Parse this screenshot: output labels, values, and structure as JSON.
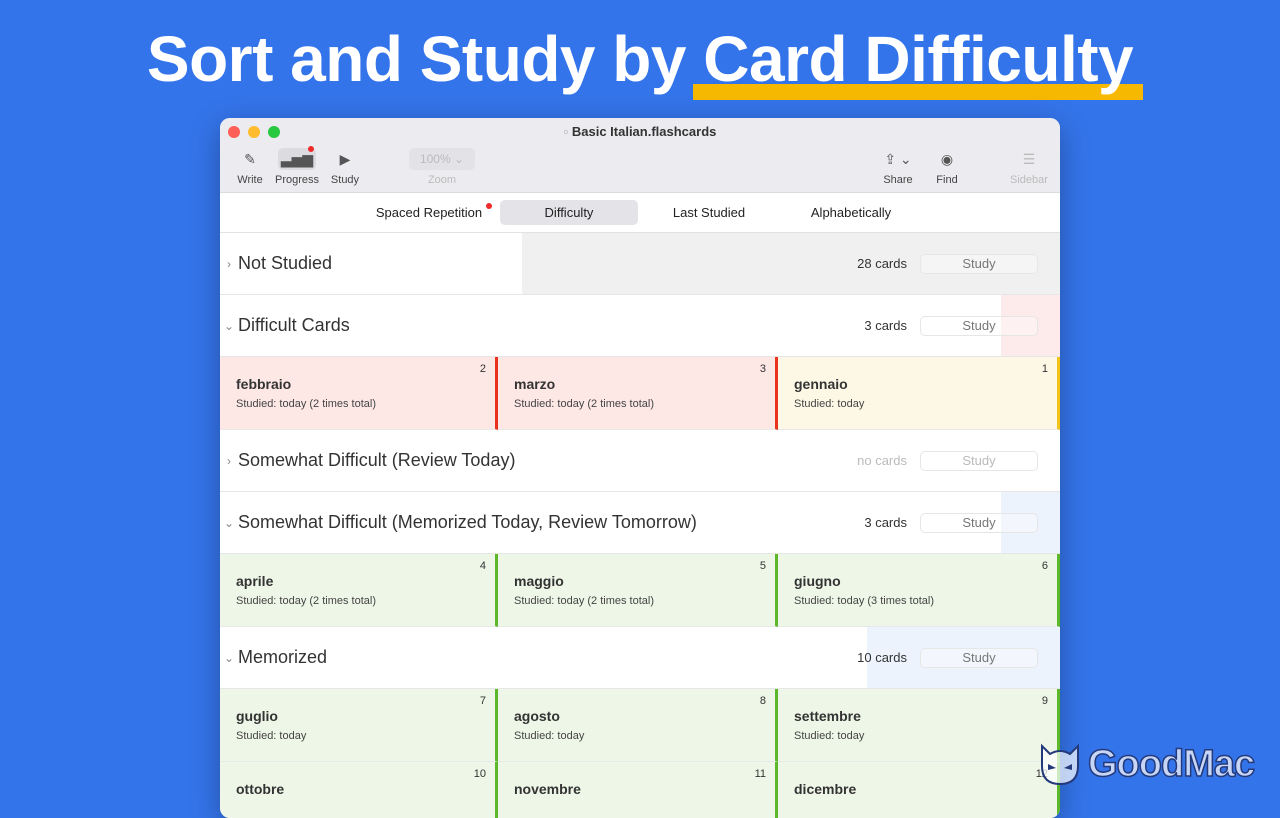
{
  "headline": {
    "part1": "Sort and Study by ",
    "part2": "Card Difficulty",
    "highlight_color": "#f6b800"
  },
  "window": {
    "title": "Basic Italian.flashcards"
  },
  "toolbar": {
    "write": "Write",
    "progress": "Progress",
    "study": "Study",
    "zoom_value": "100%",
    "zoom": "Zoom",
    "share": "Share",
    "find": "Find",
    "sidebar": "Sidebar"
  },
  "tabs": [
    {
      "label": "Spaced Repetition",
      "badge": true
    },
    {
      "label": "Difficulty",
      "selected": true
    },
    {
      "label": "Last Studied"
    },
    {
      "label": "Alphabetically"
    }
  ],
  "study_label": "Study",
  "sections": [
    {
      "name": "Not Studied",
      "count": "28 cards",
      "expanded": false,
      "progress_color": "#f0f0f0",
      "progress": 0.64,
      "cards": []
    },
    {
      "name": "Difficult Cards",
      "count": "3 cards",
      "expanded": true,
      "progress_color": "#fdeaea",
      "progress": 0.07,
      "cards": [
        {
          "n": "2",
          "word": "febbraio",
          "studied": "Studied: today (2 times total)",
          "bg": "#fde8e6",
          "border": "#e8321f"
        },
        {
          "n": "3",
          "word": "marzo",
          "studied": "Studied: today (2 times total)",
          "bg": "#fde8e6",
          "border": "#e8321f"
        },
        {
          "n": "1",
          "word": "gennaio",
          "studied": "Studied: today",
          "bg": "#fdf8e5",
          "border": "#f4c319"
        }
      ]
    },
    {
      "name": "Somewhat Difficult (Review Today)",
      "count": "no cards",
      "muted": true,
      "expanded": false,
      "progress": 0,
      "cards": []
    },
    {
      "name": "Somewhat Difficult (Memorized Today, Review Tomorrow)",
      "count": "3 cards",
      "expanded": true,
      "progress_color": "#edf3fc",
      "progress": 0.07,
      "cards": [
        {
          "n": "4",
          "word": "aprile",
          "studied": "Studied: today (2 times total)",
          "bg": "#eef6e7",
          "border": "#5cb82a"
        },
        {
          "n": "5",
          "word": "maggio",
          "studied": "Studied: today (2 times total)",
          "bg": "#eef6e7",
          "border": "#5cb82a"
        },
        {
          "n": "6",
          "word": "giugno",
          "studied": "Studied: today (3 times total)",
          "bg": "#eef6e7",
          "border": "#5cb82a"
        }
      ]
    },
    {
      "name": "Memorized",
      "count": "10 cards",
      "expanded": true,
      "progress_color": "#edf3fc",
      "progress": 0.23,
      "cards": [
        {
          "n": "7",
          "word": "guglio",
          "studied": "Studied: today",
          "bg": "#eef6e7",
          "border": "#5cb82a"
        },
        {
          "n": "8",
          "word": "agosto",
          "studied": "Studied: today",
          "bg": "#eef6e7",
          "border": "#5cb82a"
        },
        {
          "n": "9",
          "word": "settembre",
          "studied": "Studied: today",
          "bg": "#eef6e7",
          "border": "#5cb82a"
        },
        {
          "n": "10",
          "word": "ottobre",
          "studied": "",
          "bg": "#eef6e7",
          "border": "#5cb82a"
        },
        {
          "n": "11",
          "word": "novembre",
          "studied": "",
          "bg": "#eef6e7",
          "border": "#5cb82a"
        },
        {
          "n": "12",
          "word": "dicembre",
          "studied": "",
          "bg": "#eef6e7",
          "border": "#5cb82a"
        }
      ]
    }
  ],
  "watermark": "GoodMac"
}
